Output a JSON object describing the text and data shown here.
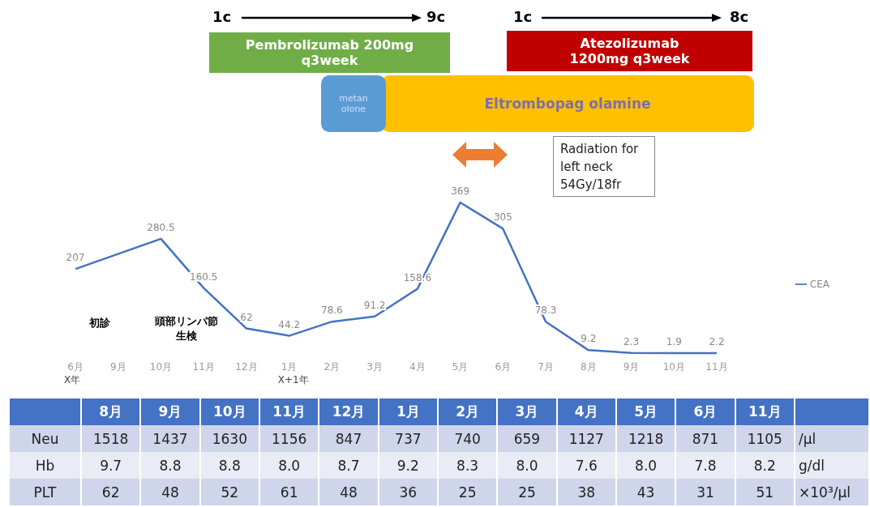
{
  "chart_data": [
    {
      "type": "line",
      "categories": [
        "6月\nX年",
        "9月",
        "10月",
        "11月",
        "12月",
        "1月\nX+1年",
        "2月",
        "3月",
        "4月",
        "5月",
        "6月",
        "7月",
        "8月",
        "9月",
        "10月",
        "11月"
      ],
      "series": [
        {
          "name": "CEA",
          "color": "#4472c4",
          "values": [
            207,
            null,
            280.5,
            160.5,
            62,
            44.2,
            78.6,
            91.2,
            158.6,
            369,
            305,
            78.3,
            9.2,
            2.3,
            1.9,
            2.2
          ]
        }
      ],
      "data_labels": true,
      "marker": "none",
      "legend": "right",
      "tick_labels": "x",
      "annotations": [
        "1c",
        "9c",
        "Pembrolizumab 200mg q3week",
        "1c",
        "8c",
        "Atezolizumab 1200mg q3week",
        "metan olone",
        "Eltrombopag olamine",
        "Radiation for left neck 54Gy/18fr",
        "初診",
        "頭部リンパ節生検"
      ]
    },
    {
      "type": "heatmap",
      "data_labels": true,
      "categories": [
        "8月",
        "9月",
        "10月",
        "11月",
        "12月",
        "1月",
        "2月",
        "3月",
        "4月",
        "5月",
        "6月",
        "11月"
      ],
      "y_categories": [
        "Neu",
        "Hb",
        "PLT"
      ],
      "y2_categories": [
        "/μl",
        "g/dl",
        "×10³/μl"
      ],
      "cells": [
        [
          1518,
          1437,
          1630,
          1156,
          847,
          737,
          740,
          659,
          1127,
          1218,
          871,
          1105
        ],
        [
          9.7,
          8.8,
          8.8,
          8.0,
          8.7,
          9.2,
          8.3,
          8.0,
          7.6,
          8.0,
          7.8,
          8.2
        ],
        [
          62,
          48,
          52,
          61,
          48,
          36,
          25,
          25,
          38,
          43,
          31,
          51
        ]
      ],
      "cell_labels": [
        [
          "1518",
          "1437",
          "1630",
          "1156",
          "847",
          "737",
          "740",
          "659",
          "1127",
          "1218",
          "871",
          "1105"
        ],
        [
          "9.7",
          "8.8",
          "8.8",
          "8.0",
          "8.7",
          "9.2",
          "8.3",
          "8.0",
          "7.6",
          "8.0",
          "7.8",
          "8.2"
        ],
        [
          "62",
          "48",
          "52",
          "61",
          "48",
          "36",
          "25",
          "25",
          "38",
          "43",
          "31",
          "51"
        ]
      ]
    }
  ]
}
